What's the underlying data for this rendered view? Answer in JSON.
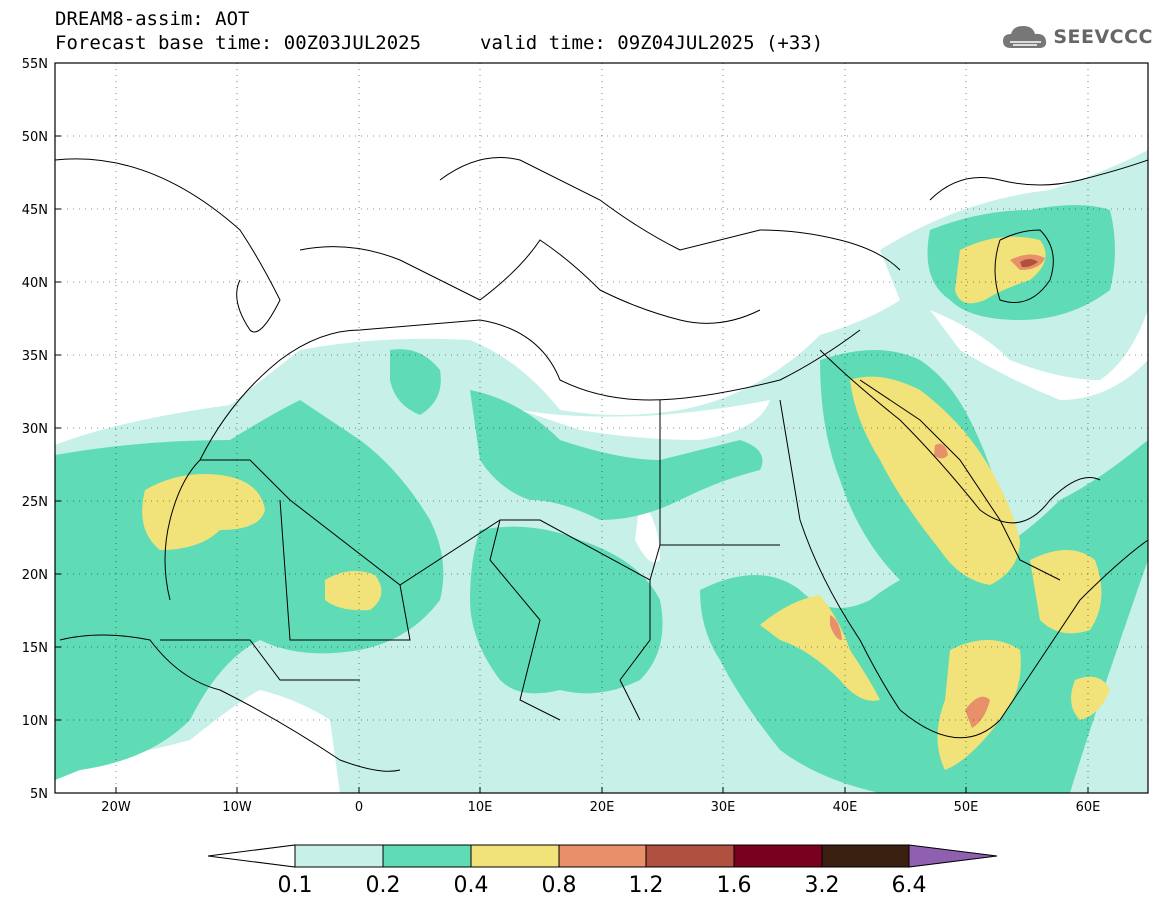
{
  "header": {
    "line1": "DREAM8-assim: AOT",
    "line2": "Forecast base time: 00Z03JUL2025",
    "line2b": "valid time: 09Z04JUL2025 (+33)"
  },
  "logo": {
    "text": "SEEVCCC",
    "icon": "cloud-icon"
  },
  "map": {
    "lat_labels": [
      "55N",
      "50N",
      "45N",
      "40N",
      "35N",
      "30N",
      "25N",
      "20N",
      "15N",
      "10N",
      "5N"
    ],
    "lon_labels": [
      "20W",
      "10W",
      "0",
      "10E",
      "20E",
      "30E",
      "40E",
      "50E",
      "60E"
    ]
  },
  "colorbar": {
    "labels": [
      "0.1",
      "0.2",
      "0.4",
      "0.8",
      "1.2",
      "1.6",
      "3.2",
      "6.4"
    ],
    "colors": [
      "#ffffff",
      "#c6f0e8",
      "#5fdcb6",
      "#f2e27a",
      "#e8906a",
      "#b05040",
      "#7a0020",
      "#3a2010",
      "#9060b0"
    ]
  },
  "palette": {
    "level1": "#c6f0e8",
    "level2": "#5fdcb6",
    "level3": "#f2e27a",
    "level4": "#e8906a",
    "level5": "#b05040"
  }
}
